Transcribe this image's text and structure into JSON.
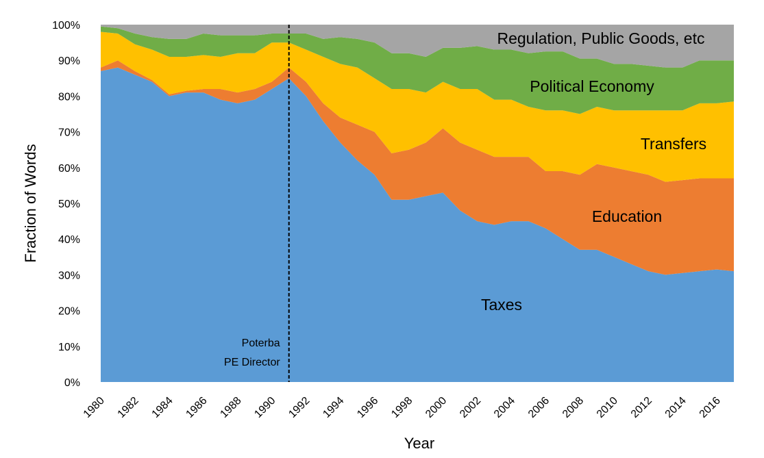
{
  "chart_data": {
    "type": "area",
    "stacked": true,
    "xlabel": "Year",
    "ylabel": "Fraction of Words",
    "xlim": [
      1980,
      2017
    ],
    "ylim": [
      0,
      1
    ],
    "y_tick_format": "percent",
    "x_ticks": [
      1980,
      1982,
      1984,
      1986,
      1988,
      1990,
      1992,
      1994,
      1996,
      1998,
      2000,
      2002,
      2004,
      2006,
      2008,
      2010,
      2012,
      2014,
      2016
    ],
    "y_ticks": [
      0,
      0.1,
      0.2,
      0.3,
      0.4,
      0.5,
      0.6,
      0.7,
      0.8,
      0.9,
      1.0
    ],
    "grid": false,
    "legend": "none",
    "x": [
      1980,
      1981,
      1982,
      1983,
      1984,
      1985,
      1986,
      1987,
      1988,
      1989,
      1990,
      1991,
      1992,
      1993,
      1994,
      1995,
      1996,
      1997,
      1998,
      1999,
      2000,
      2001,
      2002,
      2003,
      2004,
      2005,
      2006,
      2007,
      2008,
      2009,
      2010,
      2011,
      2012,
      2013,
      2014,
      2015,
      2016,
      2017
    ],
    "series": [
      {
        "name": "Taxes",
        "color": "#5B9BD5",
        "values": [
          0.87,
          0.88,
          0.86,
          0.84,
          0.8,
          0.81,
          0.81,
          0.79,
          0.78,
          0.79,
          0.82,
          0.85,
          0.8,
          0.73,
          0.67,
          0.62,
          0.58,
          0.51,
          0.51,
          0.52,
          0.53,
          0.48,
          0.45,
          0.44,
          0.45,
          0.45,
          0.43,
          0.4,
          0.37,
          0.37,
          0.35,
          0.33,
          0.31,
          0.3,
          0.305,
          0.31,
          0.315,
          0.31
        ]
      },
      {
        "name": "Education",
        "color": "#ED7D31",
        "values": [
          0.01,
          0.02,
          0.01,
          0.005,
          0.005,
          0.005,
          0.01,
          0.03,
          0.03,
          0.03,
          0.02,
          0.03,
          0.04,
          0.05,
          0.07,
          0.1,
          0.12,
          0.13,
          0.14,
          0.15,
          0.18,
          0.19,
          0.2,
          0.19,
          0.18,
          0.18,
          0.16,
          0.19,
          0.21,
          0.24,
          0.25,
          0.26,
          0.27,
          0.26,
          0.26,
          0.26,
          0.255,
          0.26
        ]
      },
      {
        "name": "Transfers",
        "color": "#FFC000",
        "values": [
          0.1,
          0.075,
          0.075,
          0.085,
          0.105,
          0.095,
          0.095,
          0.09,
          0.11,
          0.1,
          0.11,
          0.07,
          0.09,
          0.13,
          0.15,
          0.16,
          0.15,
          0.18,
          0.17,
          0.14,
          0.13,
          0.15,
          0.17,
          0.16,
          0.16,
          0.14,
          0.17,
          0.17,
          0.17,
          0.16,
          0.16,
          0.17,
          0.18,
          0.2,
          0.195,
          0.21,
          0.21,
          0.215
        ]
      },
      {
        "name": "Political Economy",
        "color": "#70AD47",
        "values": [
          0.015,
          0.015,
          0.03,
          0.035,
          0.05,
          0.05,
          0.06,
          0.06,
          0.05,
          0.05,
          0.025,
          0.025,
          0.045,
          0.05,
          0.075,
          0.08,
          0.1,
          0.1,
          0.1,
          0.1,
          0.095,
          0.115,
          0.12,
          0.14,
          0.14,
          0.15,
          0.165,
          0.165,
          0.155,
          0.135,
          0.13,
          0.13,
          0.125,
          0.12,
          0.12,
          0.12,
          0.12,
          0.115
        ]
      },
      {
        "name": "Regulation, Public Goods, etc",
        "color": "#A5A5A5",
        "values": [
          0.005,
          0.01,
          0.025,
          0.035,
          0.04,
          0.04,
          0.025,
          0.03,
          0.03,
          0.03,
          0.025,
          0.025,
          0.025,
          0.04,
          0.035,
          0.04,
          0.05,
          0.08,
          0.08,
          0.09,
          0.065,
          0.065,
          0.06,
          0.07,
          0.07,
          0.08,
          0.075,
          0.075,
          0.095,
          0.095,
          0.11,
          0.11,
          0.115,
          0.12,
          0.12,
          0.1,
          0.1,
          0.1
        ]
      }
    ],
    "series_labels": [
      "Taxes",
      "Education",
      "Transfers",
      "Political Economy",
      "Regulation, Public Goods, etc"
    ],
    "annotation": {
      "x": 1991,
      "lines": [
        "Poterba",
        "PE Director"
      ],
      "style": "dashed-vertical"
    }
  }
}
